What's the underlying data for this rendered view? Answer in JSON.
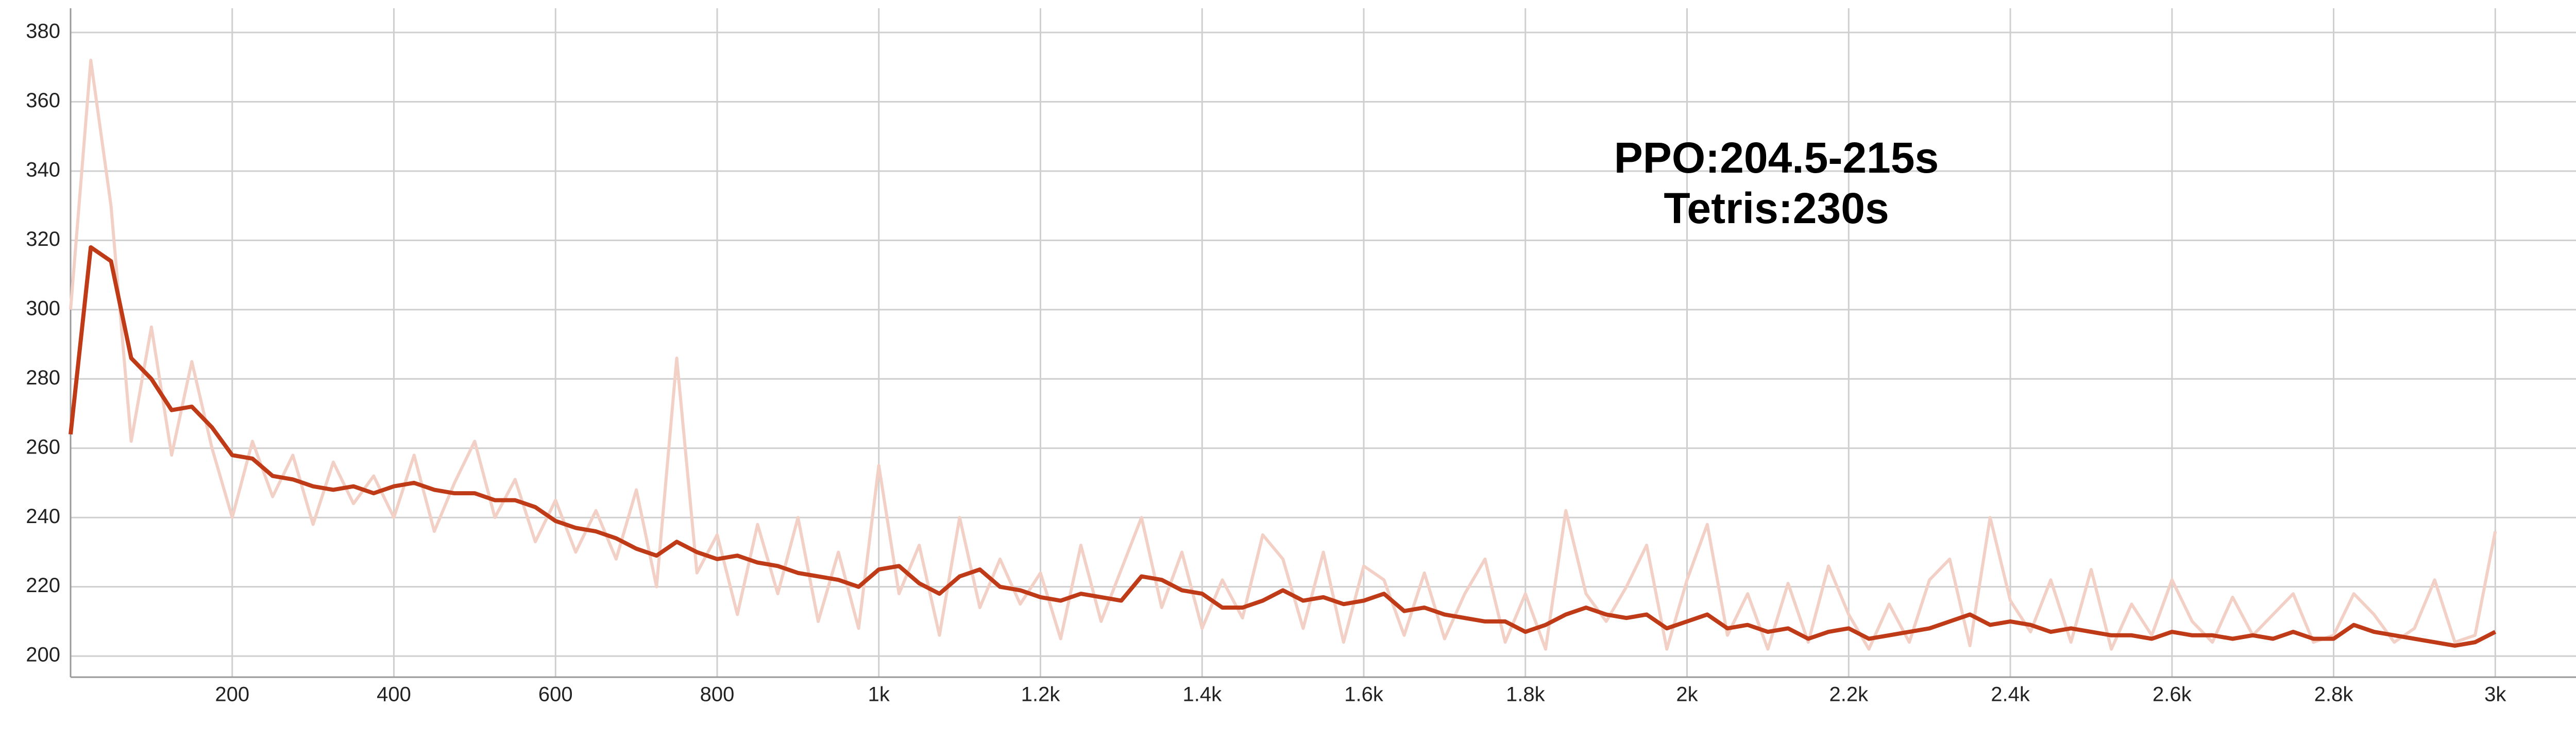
{
  "chart_data": {
    "type": "line",
    "annotations": [
      "PPO:204.5-215s",
      "Tetris:230s"
    ],
    "x": [
      0,
      25,
      50,
      75,
      100,
      125,
      150,
      175,
      200,
      225,
      250,
      275,
      300,
      325,
      350,
      375,
      400,
      425,
      450,
      475,
      500,
      525,
      550,
      575,
      600,
      625,
      650,
      675,
      700,
      725,
      750,
      775,
      800,
      825,
      850,
      875,
      900,
      925,
      950,
      975,
      1000,
      1025,
      1050,
      1075,
      1100,
      1125,
      1150,
      1175,
      1200,
      1225,
      1250,
      1275,
      1300,
      1325,
      1350,
      1375,
      1400,
      1425,
      1450,
      1475,
      1500,
      1525,
      1550,
      1575,
      1600,
      1625,
      1650,
      1675,
      1700,
      1725,
      1750,
      1775,
      1800,
      1825,
      1850,
      1875,
      1900,
      1925,
      1950,
      1975,
      2000,
      2025,
      2050,
      2075,
      2100,
      2125,
      2150,
      2175,
      2200,
      2225,
      2250,
      2275,
      2300,
      2325,
      2350,
      2375,
      2400,
      2425,
      2450,
      2475,
      2500,
      2525,
      2550,
      2575,
      2600,
      2625,
      2650,
      2675,
      2700,
      2725,
      2750,
      2775,
      2800,
      2825,
      2850,
      2875,
      2900,
      2925,
      2950,
      2975,
      3000
    ],
    "series": [
      {
        "color": "#f2d0c6",
        "values": [
          300,
          372,
          330,
          262,
          295,
          258,
          285,
          260,
          240,
          262,
          246,
          258,
          238,
          256,
          244,
          252,
          240,
          258,
          236,
          250,
          262,
          240,
          251,
          233,
          245,
          230,
          242,
          228,
          248,
          220,
          286,
          224,
          235,
          212,
          238,
          218,
          240,
          210,
          230,
          208,
          255,
          218,
          232,
          206,
          240,
          214,
          228,
          215,
          224,
          205,
          232,
          210,
          225,
          240,
          214,
          230,
          208,
          222,
          211,
          235,
          228,
          208,
          230,
          204,
          226,
          222,
          206,
          224,
          205,
          218,
          228,
          204,
          218,
          202,
          242,
          218,
          210,
          220,
          232,
          202,
          222,
          238,
          206,
          218,
          202,
          221,
          204,
          226,
          212,
          202,
          215,
          204,
          222,
          228,
          203,
          240,
          216,
          207,
          222,
          204,
          225,
          202,
          215,
          206,
          222,
          210,
          204,
          217,
          206,
          212,
          218,
          204,
          206,
          218,
          212,
          204,
          208,
          222,
          204,
          206,
          236
        ]
      },
      {
        "color": "#bf3a17",
        "values": [
          264,
          318,
          314,
          286,
          280,
          271,
          272,
          266,
          258,
          257,
          252,
          251,
          249,
          248,
          249,
          247,
          249,
          250,
          248,
          247,
          247,
          245,
          245,
          243,
          239,
          237,
          236,
          234,
          231,
          229,
          233,
          230,
          228,
          229,
          227,
          226,
          224,
          223,
          222,
          220,
          225,
          226,
          221,
          218,
          223,
          225,
          220,
          219,
          217,
          216,
          218,
          217,
          216,
          223,
          222,
          219,
          218,
          214,
          214,
          216,
          219,
          216,
          217,
          215,
          216,
          218,
          213,
          214,
          212,
          211,
          210,
          210,
          207,
          209,
          212,
          214,
          212,
          211,
          212,
          208,
          210,
          212,
          208,
          209,
          207,
          208,
          205,
          207,
          208,
          205,
          206,
          207,
          208,
          210,
          212,
          209,
          210,
          209,
          207,
          208,
          207,
          206,
          206,
          205,
          207,
          206,
          206,
          205,
          206,
          205,
          207,
          205,
          205,
          209,
          207,
          206,
          205,
          204,
          203,
          204,
          207
        ]
      }
    ],
    "xlim": [
      0,
      3170
    ],
    "ylim": [
      196,
      387
    ],
    "xticks": [
      200,
      400,
      600,
      800,
      {
        "value": 1000,
        "label": "1k"
      },
      {
        "value": 1200,
        "label": "1.2k"
      },
      {
        "value": 1400,
        "label": "1.4k"
      },
      {
        "value": 1600,
        "label": "1.6k"
      },
      {
        "value": 1800,
        "label": "1.8k"
      },
      {
        "value": 2000,
        "label": "2k"
      },
      {
        "value": 2200,
        "label": "2.2k"
      },
      {
        "value": 2400,
        "label": "2.4k"
      },
      {
        "value": 2600,
        "label": "2.6k"
      },
      {
        "value": 2800,
        "label": "2.8k"
      },
      {
        "value": 3000,
        "label": "3k"
      }
    ],
    "yticks": [
      200,
      220,
      240,
      260,
      280,
      300,
      320,
      340,
      360,
      380
    ],
    "grid": true
  }
}
